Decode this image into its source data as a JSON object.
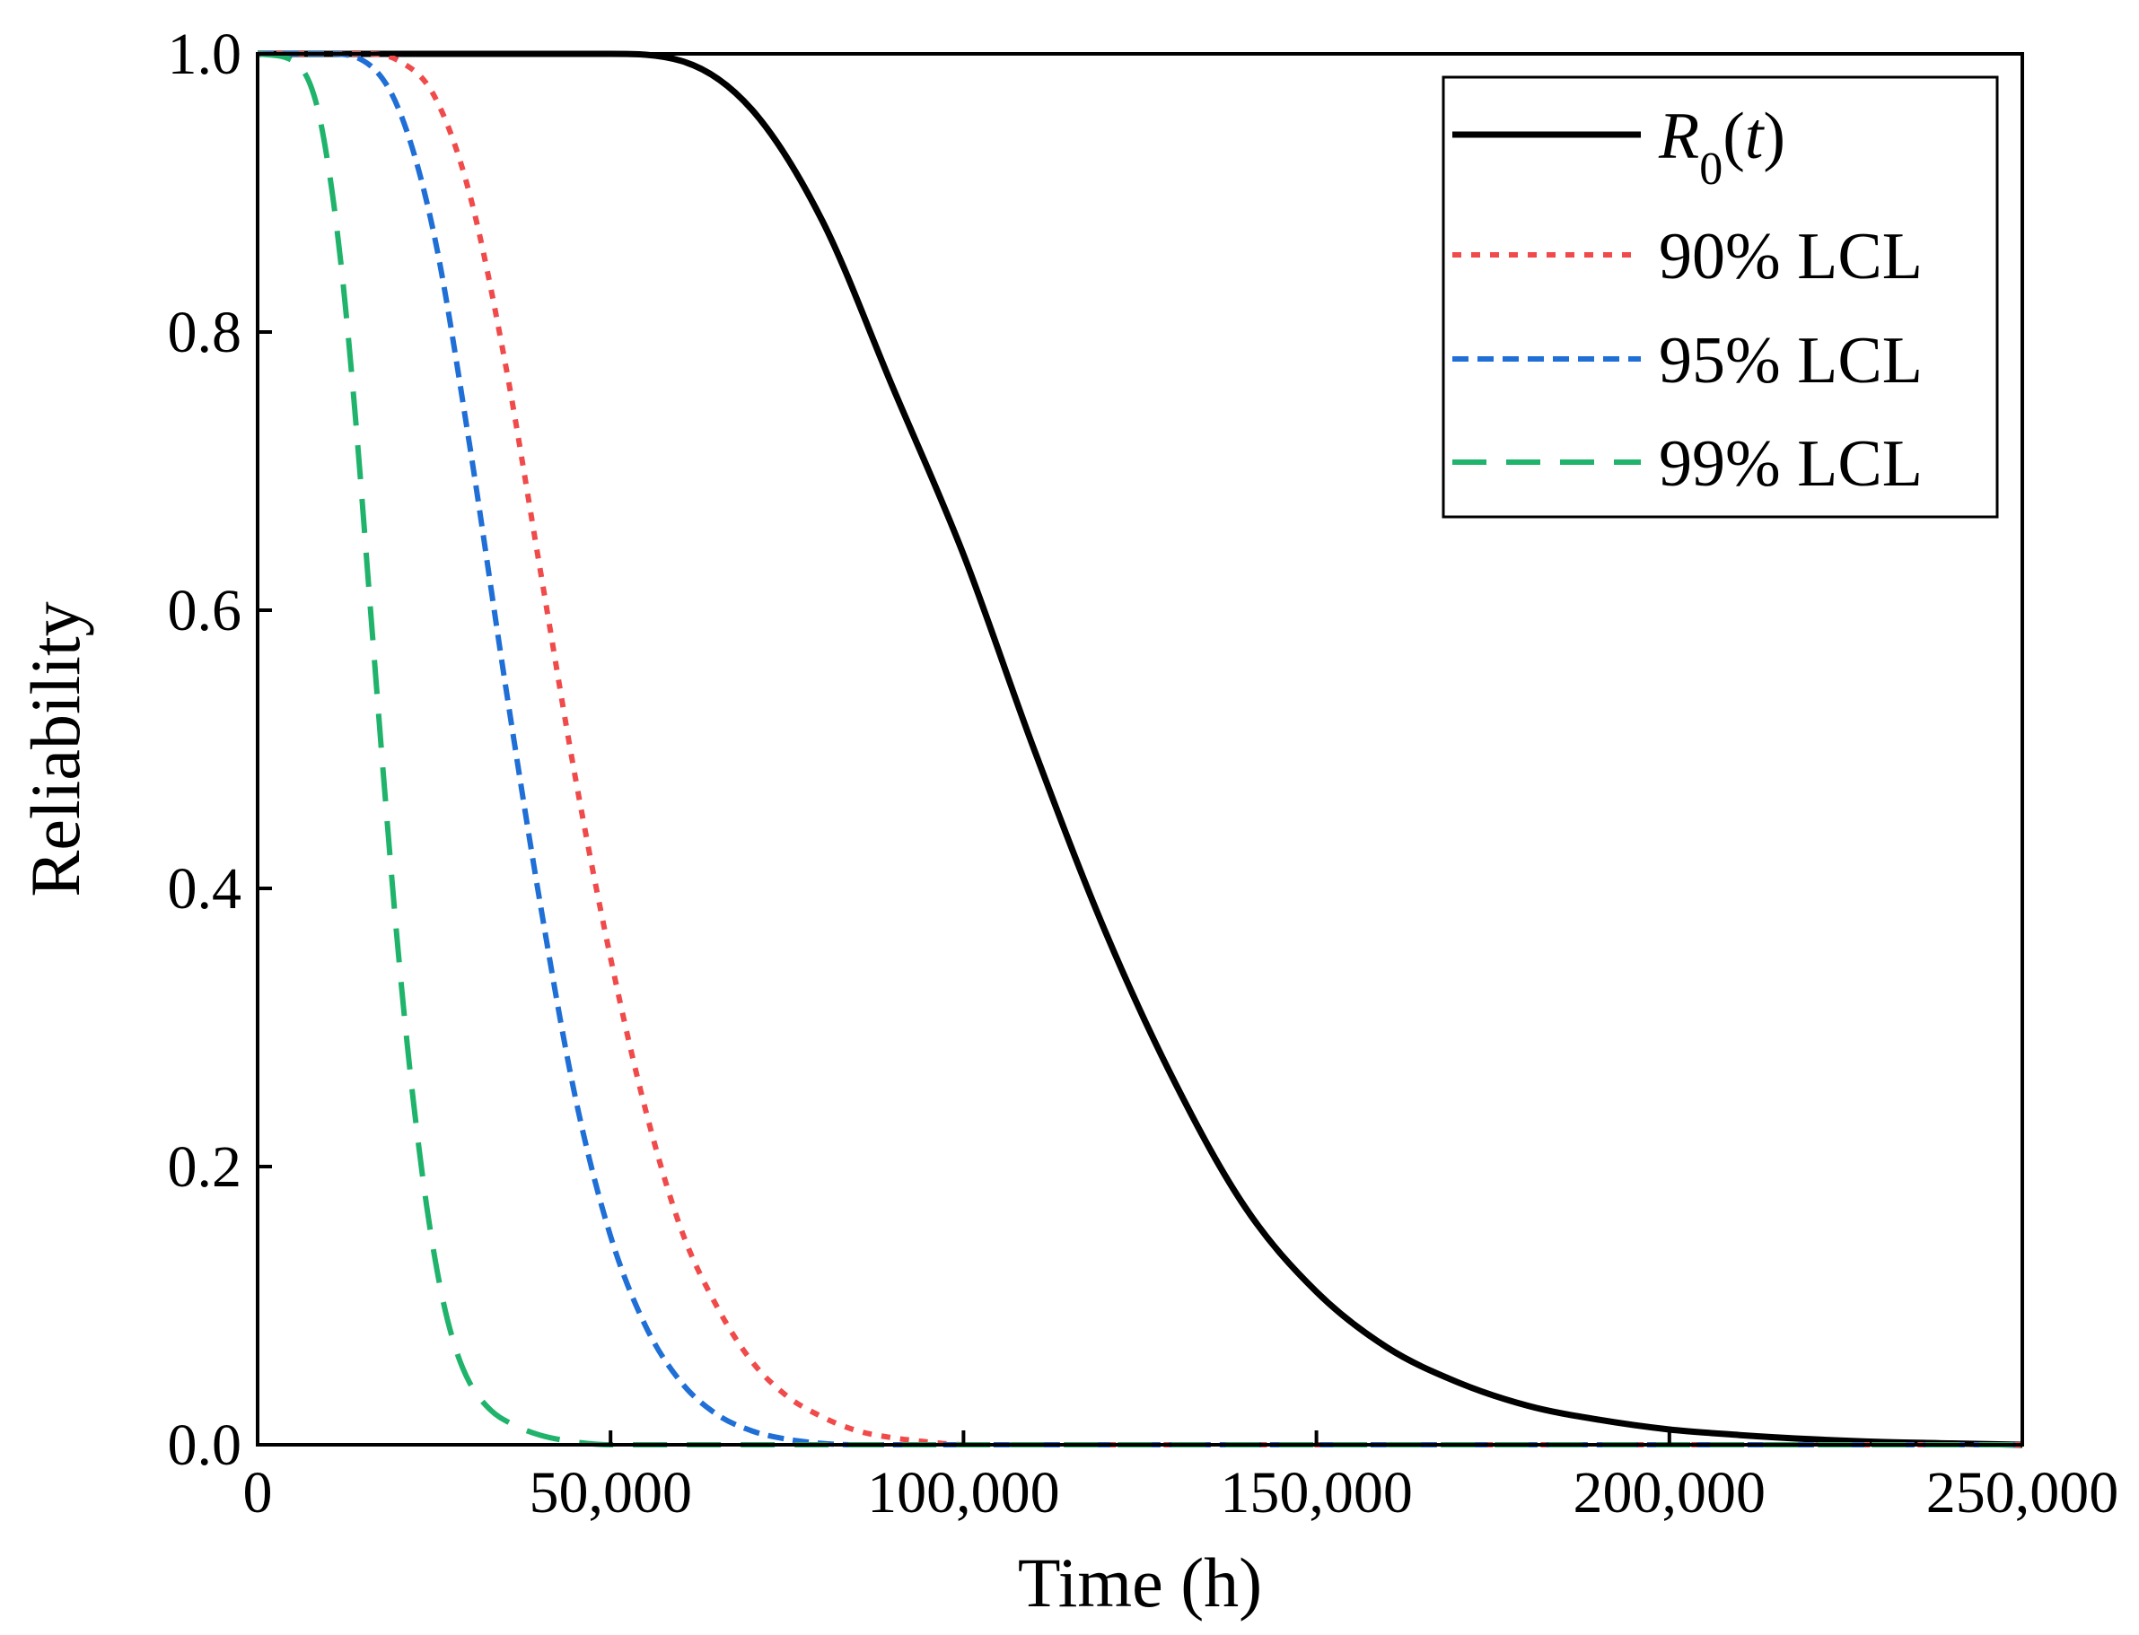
{
  "chart_data": {
    "type": "line",
    "title": "",
    "xlabel": "Time (h)",
    "ylabel": "Reliability",
    "xlim": [
      0,
      250000
    ],
    "ylim": [
      0,
      1.0
    ],
    "grid": false,
    "legend_position": "top-right",
    "xticks": [
      0,
      50000,
      100000,
      150000,
      200000,
      250000
    ],
    "xtick_labels": [
      "0",
      "50,000",
      "100,000",
      "150,000",
      "200,000",
      "250,000"
    ],
    "yticks": [
      0.0,
      0.2,
      0.4,
      0.6,
      0.8,
      1.0
    ],
    "ytick_labels": [
      "0.0",
      "0.2",
      "0.4",
      "0.6",
      "0.8",
      "1.0"
    ],
    "series": [
      {
        "name": "R0(t)",
        "legend_main": "R",
        "legend_sub": "0",
        "legend_tail": "(t)",
        "color": "#000000",
        "dash": "solid",
        "x": [
          0,
          50000,
          60000,
          70000,
          80000,
          90000,
          100000,
          110000,
          120000,
          130000,
          140000,
          150000,
          160000,
          170000,
          180000,
          190000,
          200000,
          210000,
          220000,
          230000,
          240000,
          250000
        ],
        "y": [
          1.0,
          1.0,
          0.995,
          0.96,
          0.88,
          0.76,
          0.64,
          0.5,
          0.37,
          0.26,
          0.17,
          0.11,
          0.07,
          0.045,
          0.028,
          0.018,
          0.011,
          0.007,
          0.004,
          0.002,
          0.001,
          0.0
        ]
      },
      {
        "name": "90% LCL",
        "color": "#f04a4a",
        "dash": "dot",
        "x": [
          0,
          15000,
          20000,
          25000,
          30000,
          35000,
          40000,
          45000,
          50000,
          55000,
          60000,
          65000,
          70000,
          75000,
          80000,
          85000,
          90000,
          95000,
          100000,
          110000,
          250000
        ],
        "y": [
          1.0,
          1.0,
          0.995,
          0.97,
          0.9,
          0.78,
          0.63,
          0.48,
          0.35,
          0.24,
          0.155,
          0.1,
          0.06,
          0.035,
          0.02,
          0.01,
          0.005,
          0.002,
          0.0,
          0.0,
          0.0
        ]
      },
      {
        "name": "95% LCL",
        "color": "#1f6fd6",
        "dash": "dash-short",
        "x": [
          0,
          10000,
          15000,
          20000,
          25000,
          30000,
          35000,
          40000,
          45000,
          50000,
          55000,
          60000,
          65000,
          70000,
          75000,
          80000,
          85000,
          90000,
          250000
        ],
        "y": [
          1.0,
          1.0,
          0.995,
          0.96,
          0.87,
          0.72,
          0.55,
          0.39,
          0.25,
          0.15,
          0.085,
          0.045,
          0.022,
          0.01,
          0.004,
          0.001,
          0.0,
          0.0,
          0.0
        ]
      },
      {
        "name": "99% LCL",
        "color": "#1fb36b",
        "dash": "dash-long",
        "x": [
          0,
          5000,
          8000,
          10000,
          12000,
          14000,
          16000,
          18000,
          20000,
          22000,
          24000,
          26000,
          28000,
          30000,
          33000,
          36000,
          40000,
          45000,
          50000,
          55000,
          250000
        ],
        "y": [
          1.0,
          0.995,
          0.97,
          0.92,
          0.84,
          0.73,
          0.6,
          0.47,
          0.35,
          0.25,
          0.17,
          0.11,
          0.07,
          0.045,
          0.025,
          0.015,
          0.007,
          0.002,
          0.0,
          0.0,
          0.0
        ]
      }
    ]
  }
}
